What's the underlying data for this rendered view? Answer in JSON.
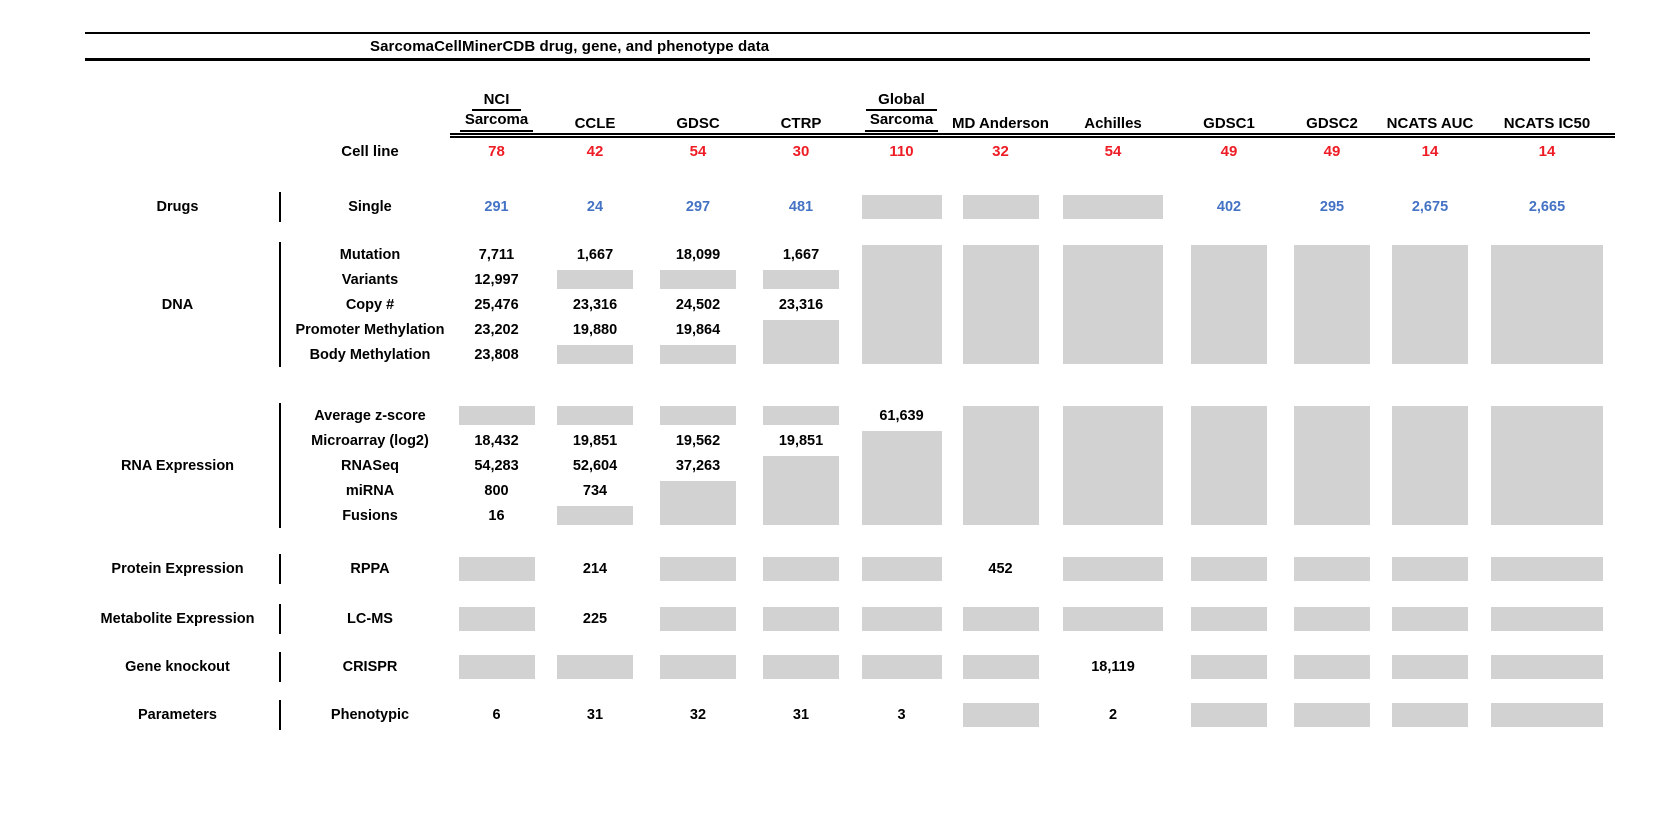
{
  "title": "SarcomaCellMinerCDB drug, gene, and phenotype data",
  "cell_line_label": "Cell line",
  "colors": {
    "count_red": "#ee1c25",
    "drug_blue": "#4472c4",
    "missing_gray": "#d2d2d2"
  },
  "columns": [
    {
      "top": "NCI",
      "name": "Sarcoma",
      "cell_lines": "78"
    },
    {
      "top": null,
      "name": "CCLE",
      "cell_lines": "42"
    },
    {
      "top": null,
      "name": "GDSC",
      "cell_lines": "54"
    },
    {
      "top": null,
      "name": "CTRP",
      "cell_lines": "30"
    },
    {
      "top": "Global",
      "name": "Sarcoma",
      "cell_lines": "110"
    },
    {
      "top": null,
      "name": "MD Anderson",
      "cell_lines": "32"
    },
    {
      "top": null,
      "name": "Achilles",
      "cell_lines": "54"
    },
    {
      "top": null,
      "name": "GDSC1",
      "cell_lines": "49"
    },
    {
      "top": null,
      "name": "GDSC2",
      "cell_lines": "49"
    },
    {
      "top": null,
      "name": "NCATS AUC",
      "cell_lines": "14"
    },
    {
      "top": null,
      "name": "NCATS IC50",
      "cell_lines": "14"
    }
  ],
  "missing_data_note": "numeric cell entries are counts; integer entries in cells denote a gray missing-data block spanning that many rows; null means covered by the block above",
  "sections": [
    {
      "category": "Drugs",
      "value_color": "blue",
      "row_labels": [
        "Single"
      ],
      "cells": [
        [
          "291",
          "24",
          "297",
          "481",
          1,
          1,
          1,
          "402",
          "295",
          "2,675",
          "2,665"
        ]
      ]
    },
    {
      "category": "DNA",
      "value_color": "black",
      "row_labels": [
        "Mutation",
        "Variants",
        "Copy #",
        "Promoter Methylation",
        "Body Methylation"
      ],
      "cells": [
        [
          "7,711",
          "1,667",
          "18,099",
          "1,667",
          5,
          5,
          5,
          5,
          5,
          5,
          5
        ],
        [
          "12,997",
          1,
          1,
          1,
          null,
          null,
          null,
          null,
          null,
          null,
          null
        ],
        [
          "25,476",
          "23,316",
          "24,502",
          "23,316",
          null,
          null,
          null,
          null,
          null,
          null,
          null
        ],
        [
          "23,202",
          "19,880",
          "19,864",
          2,
          null,
          null,
          null,
          null,
          null,
          null,
          null
        ],
        [
          "23,808",
          1,
          1,
          null,
          null,
          null,
          null,
          null,
          null,
          null,
          null
        ]
      ]
    },
    {
      "category": "RNA Expression",
      "value_color": "black",
      "row_labels": [
        "Average z-score",
        "Microarray (log2)",
        "RNASeq",
        "miRNA",
        "Fusions"
      ],
      "cells": [
        [
          1,
          1,
          1,
          1,
          "61,639",
          5,
          5,
          5,
          5,
          5,
          5
        ],
        [
          "18,432",
          "19,851",
          "19,562",
          "19,851",
          4,
          null,
          null,
          null,
          null,
          null,
          null
        ],
        [
          "54,283",
          "52,604",
          "37,263",
          3,
          null,
          null,
          null,
          null,
          null,
          null,
          null
        ],
        [
          "800",
          "734",
          2,
          null,
          null,
          null,
          null,
          null,
          null,
          null,
          null
        ],
        [
          "16",
          1,
          null,
          null,
          null,
          null,
          null,
          null,
          null,
          null,
          null
        ]
      ]
    },
    {
      "category": "Protein Expression",
      "value_color": "black",
      "row_labels": [
        "RPPA"
      ],
      "cells": [
        [
          1,
          "214",
          1,
          1,
          1,
          "452",
          1,
          1,
          1,
          1,
          1
        ]
      ]
    },
    {
      "category": "Metabolite Expression",
      "value_color": "black",
      "row_labels": [
        "LC-MS"
      ],
      "cells": [
        [
          1,
          "225",
          1,
          1,
          1,
          1,
          1,
          1,
          1,
          1,
          1
        ]
      ]
    },
    {
      "category": "Gene knockout",
      "value_color": "black",
      "row_labels": [
        "CRISPR"
      ],
      "cells": [
        [
          1,
          1,
          1,
          1,
          1,
          1,
          "18,119",
          1,
          1,
          1,
          1
        ]
      ]
    },
    {
      "category": "Parameters",
      "value_color": "black",
      "row_labels": [
        "Phenotypic"
      ],
      "cells": [
        [
          "6",
          "31",
          "32",
          "31",
          "3",
          1,
          "2",
          1,
          1,
          1,
          1
        ]
      ]
    }
  ]
}
